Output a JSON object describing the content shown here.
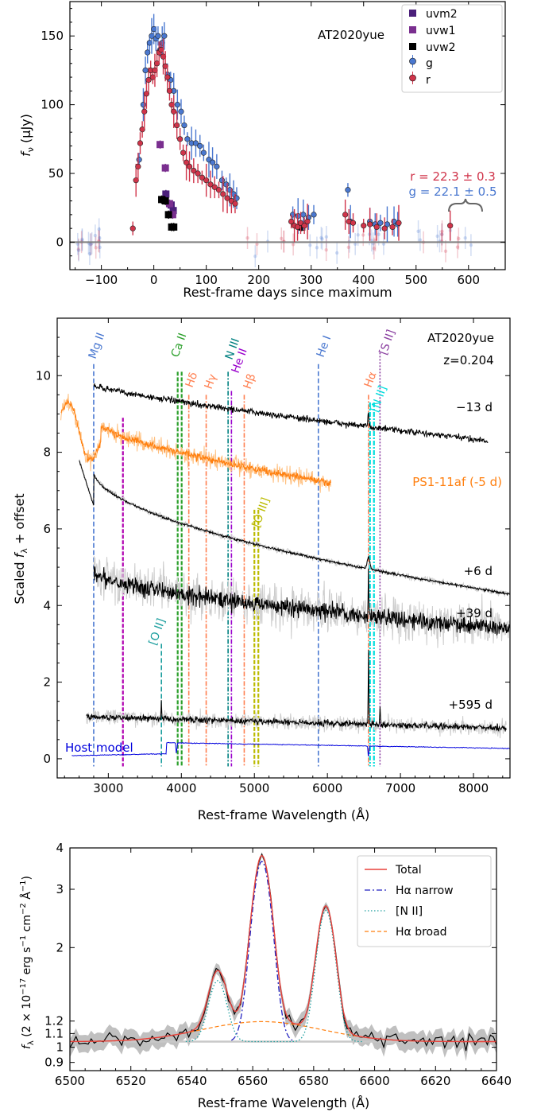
{
  "chart_data": [
    {
      "type": "scatter",
      "title": "AT2020yue",
      "xlabel": "Rest-frame days since maximum",
      "ylabel": "f_ν (μJy)",
      "xlim": [
        -160,
        670
      ],
      "ylim": [
        -20,
        175
      ],
      "xticks": [
        "−100",
        "0",
        "100",
        "200",
        "300",
        "400",
        "500",
        "600"
      ],
      "xtick_values": [
        -100,
        0,
        100,
        200,
        300,
        400,
        500,
        600
      ],
      "yticks": [
        "0",
        "50",
        "100",
        "150"
      ],
      "ytick_values": [
        0,
        50,
        100,
        150
      ],
      "legend": {
        "position": "top-right",
        "entries": [
          "uvm2",
          "uvw1",
          "uvw2",
          "g",
          "r"
        ]
      },
      "annotation_r": "r = 22.3 ± 0.3",
      "annotation_g": "g = 22.1 ± 0.5",
      "zero_line": 0,
      "series": [
        {
          "name": "uvm2",
          "color": "#4b1f7a",
          "marker": "square",
          "points": [
            [
              23,
              35
            ],
            [
              33,
              27
            ],
            [
              37,
              23
            ]
          ]
        },
        {
          "name": "uvw1",
          "color": "#7a2f8f",
          "marker": "square",
          "points": [
            [
              12,
              71
            ],
            [
              22,
              54
            ],
            [
              30,
              28
            ],
            [
              36,
              20
            ]
          ]
        },
        {
          "name": "uvw2",
          "color": "#000000",
          "marker": "square",
          "points": [
            [
              15,
              31
            ],
            [
              22,
              30
            ],
            [
              28,
              20
            ],
            [
              34,
              11
            ],
            [
              38,
              11
            ],
            [
              282,
              11
            ]
          ]
        },
        {
          "name": "g",
          "color": "#4a78d0",
          "marker": "circle",
          "points": [
            [
              -28,
              60
            ],
            [
              -20,
              100
            ],
            [
              -16,
              125
            ],
            [
              -12,
              138
            ],
            [
              -8,
              145
            ],
            [
              -4,
              150
            ],
            [
              0,
              155
            ],
            [
              4,
              148
            ],
            [
              8,
              150
            ],
            [
              12,
              140
            ],
            [
              16,
              145
            ],
            [
              20,
              150
            ],
            [
              26,
              122
            ],
            [
              32,
              118
            ],
            [
              38,
              110
            ],
            [
              45,
              100
            ],
            [
              52,
              95
            ],
            [
              58,
              85
            ],
            [
              64,
              75
            ],
            [
              72,
              72
            ],
            [
              80,
              72
            ],
            [
              88,
              70
            ],
            [
              95,
              65
            ],
            [
              105,
              60
            ],
            [
              112,
              58
            ],
            [
              120,
              55
            ],
            [
              130,
              45
            ],
            [
              138,
              42
            ],
            [
              145,
              38
            ],
            [
              152,
              35
            ],
            [
              158,
              32
            ],
            [
              265,
              20
            ],
            [
              275,
              19
            ],
            [
              285,
              20
            ],
            [
              295,
              18
            ],
            [
              305,
              20
            ],
            [
              370,
              38
            ],
            [
              375,
              15
            ],
            [
              412,
              15
            ],
            [
              422,
              13
            ],
            [
              432,
              14
            ],
            [
              445,
              13
            ],
            [
              458,
              15
            ],
            [
              465,
              13
            ]
          ]
        },
        {
          "name": "r",
          "color": "#d0344a",
          "marker": "circle",
          "points": [
            [
              -40,
              10
            ],
            [
              -34,
              45
            ],
            [
              -30,
              55
            ],
            [
              -26,
              72
            ],
            [
              -22,
              82
            ],
            [
              -18,
              95
            ],
            [
              -14,
              108
            ],
            [
              -10,
              118
            ],
            [
              -6,
              125
            ],
            [
              -2,
              120
            ],
            [
              2,
              125
            ],
            [
              6,
              130
            ],
            [
              10,
              138
            ],
            [
              14,
              140
            ],
            [
              18,
              135
            ],
            [
              22,
              128
            ],
            [
              26,
              120
            ],
            [
              30,
              110
            ],
            [
              34,
              100
            ],
            [
              38,
              95
            ],
            [
              44,
              85
            ],
            [
              50,
              75
            ],
            [
              56,
              65
            ],
            [
              62,
              58
            ],
            [
              68,
              55
            ],
            [
              76,
              52
            ],
            [
              84,
              50
            ],
            [
              92,
              47
            ],
            [
              100,
              45
            ],
            [
              108,
              42
            ],
            [
              116,
              40
            ],
            [
              124,
              38
            ],
            [
              132,
              35
            ],
            [
              140,
              32
            ],
            [
              148,
              30
            ],
            [
              155,
              28
            ],
            [
              262,
              15
            ],
            [
              268,
              12
            ],
            [
              274,
              11
            ],
            [
              280,
              14
            ],
            [
              287,
              12
            ],
            [
              293,
              15
            ],
            [
              365,
              20
            ],
            [
              372,
              15
            ],
            [
              380,
              14
            ],
            [
              400,
              12
            ],
            [
              412,
              13
            ],
            [
              425,
              11
            ],
            [
              440,
              10
            ],
            [
              455,
              11
            ],
            [
              467,
              14
            ],
            [
              565,
              12
            ]
          ]
        }
      ]
    },
    {
      "type": "line",
      "title": "AT2020yue",
      "subtitle": "z=0.204",
      "xlabel": "Rest-frame Wavelength (Å)",
      "ylabel": "Scaled f_λ + offset",
      "xlim": [
        2300,
        8500
      ],
      "ylim": [
        -0.5,
        11.5
      ],
      "xticks": [
        "3000",
        "4000",
        "5000",
        "6000",
        "7000",
        "8000"
      ],
      "xtick_values": [
        3000,
        4000,
        5000,
        6000,
        7000,
        8000
      ],
      "yticks": [
        "0",
        "2",
        "4",
        "6",
        "8",
        "10"
      ],
      "ytick_values": [
        0,
        2,
        4,
        6,
        8,
        10
      ],
      "spectra": [
        {
          "label": "−13 d",
          "color": "#000000",
          "range": [
            2800,
            8200
          ],
          "base": 8.25,
          "top": 9.75
        },
        {
          "label": "PS1-11af (-5 d)",
          "color": "#ff7f0e",
          "range": [
            2350,
            6050
          ],
          "base": 7.15,
          "top": 8.85
        },
        {
          "label": "+6 d",
          "color": "#000000",
          "range": [
            2600,
            8500
          ],
          "base": 4.3,
          "top": 7.7
        },
        {
          "label": "+39 d",
          "color": "#000000",
          "range": [
            2800,
            8500
          ],
          "base": 3.0,
          "top": 4.6
        },
        {
          "label": "+595 d",
          "color": "#000000",
          "range": [
            2700,
            8450
          ],
          "base": 0.8,
          "top": 1.2
        },
        {
          "label": "Host model",
          "color": "#0000dd",
          "range": [
            2500,
            8500
          ],
          "base": 0.1,
          "top": 0.5
        }
      ],
      "lines": [
        {
          "label": "Mg II",
          "wavelength": 2800,
          "color": "#4a78d0",
          "top": 10.3
        },
        {
          "label": "Ca II",
          "wavelength": 3950,
          "color": "#2ca02c",
          "top": 10.1
        },
        {
          "label": "Hδ",
          "wavelength": 4102,
          "color": "#ff7f50",
          "top": 9.5
        },
        {
          "label": "Hγ",
          "wavelength": 4340,
          "color": "#ff7f50",
          "top": 9.5
        },
        {
          "label": "N III",
          "wavelength": 4640,
          "color": "#008080",
          "top": 10.1
        },
        {
          "label": "He II",
          "wavelength": 4686,
          "color": "#9900cc",
          "top": 9.6
        },
        {
          "label": "Hβ",
          "wavelength": 4861,
          "color": "#ff7f50",
          "top": 9.5
        },
        {
          "label": "[O III]",
          "wavelength": 5000,
          "color": "#bbbb00",
          "top": 6.5
        },
        {
          "label": "He I",
          "wavelength": 5876,
          "color": "#4a78d0",
          "top": 10.3
        },
        {
          "label": "Hα",
          "wavelength": 6563,
          "color": "#ff7f50",
          "top": 9.5
        },
        {
          "label": "[N II]",
          "wavelength": 6583,
          "color": "#00dddd",
          "top": 9.3
        },
        {
          "label": "[S II]",
          "wavelength": 6720,
          "color": "#8a3fa0",
          "top": 10.6
        },
        {
          "label": "[O II]",
          "wavelength": 3727,
          "color": "#1b9e9e",
          "top": 3.0
        },
        {
          "label": "",
          "wavelength": 3200,
          "color": "#b000b0",
          "top": 8.9
        }
      ]
    },
    {
      "type": "line",
      "xlabel": "Rest-frame Wavelength (Å)",
      "ylabel": "f_λ (2 × 10⁻¹⁷ erg s⁻¹ cm⁻² Å⁻¹)",
      "xlim": [
        6500,
        6640
      ],
      "ylim": [
        0.85,
        4.0
      ],
      "yscale": "log",
      "xticks": [
        "6500",
        "6520",
        "6540",
        "6560",
        "6580",
        "6600",
        "6620",
        "6640"
      ],
      "xtick_values": [
        6500,
        6520,
        6540,
        6560,
        6580,
        6600,
        6620,
        6640
      ],
      "yticks": [
        "0.9",
        "1",
        "1.1",
        "1.2",
        "2",
        "3",
        "4"
      ],
      "ytick_values": [
        0.9,
        1.0,
        1.1,
        1.2,
        2,
        3,
        4
      ],
      "continuum": 1.04,
      "legend": {
        "position": "top-right",
        "entries": [
          "Total",
          "Hα narrow",
          "[N II]",
          "Hα broad"
        ]
      },
      "components": [
        {
          "name": "Hα narrow",
          "center": 6563,
          "peak": 2.6,
          "sigma": 3.0,
          "color": "#2020c0"
        },
        {
          "name": "[N II]",
          "center": 6584,
          "peak": 1.55,
          "sigma": 2.8,
          "center2": 6548.5,
          "peak2": 0.55,
          "color": "#1b9e9e"
        },
        {
          "name": "Hα broad",
          "center": 6563,
          "peak": 0.155,
          "sigma": 19.0,
          "color": "#ff7f0e"
        }
      ],
      "total_color": "#e8413c"
    }
  ]
}
